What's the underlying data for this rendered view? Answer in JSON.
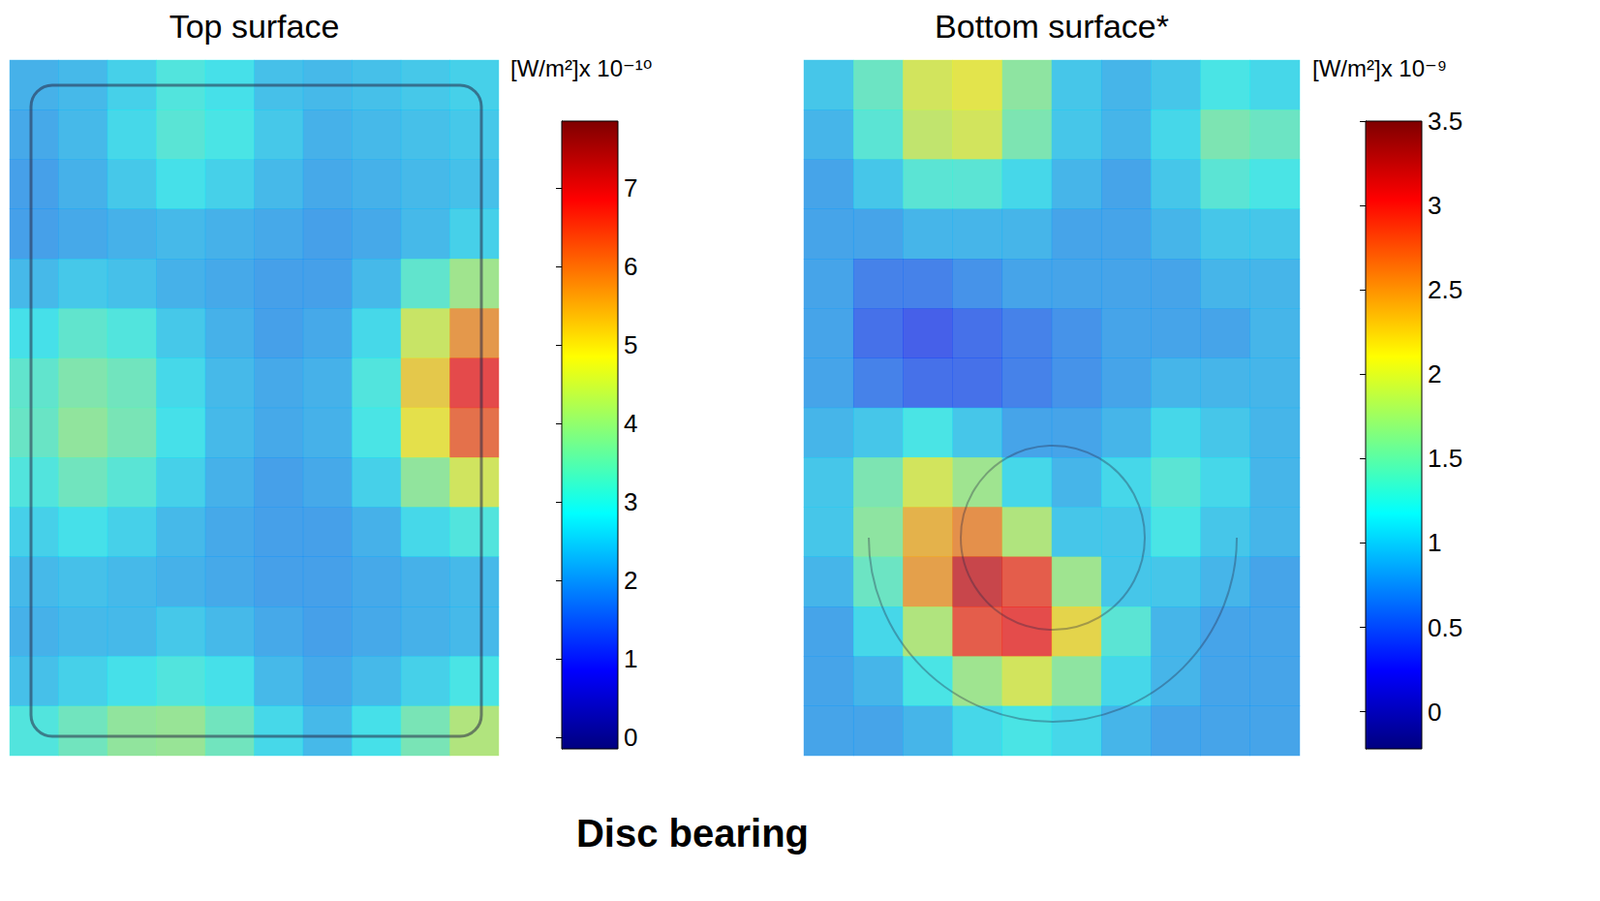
{
  "chart_data": [
    {
      "type": "heatmap",
      "title": "Top surface",
      "tick_labels": false,
      "colorbar_label": "[W/m²]x 10⁻¹⁰",
      "colorbar_range": [
        -0.15,
        7.85
      ],
      "colorbar_ticks": [
        0,
        1,
        2,
        3,
        4,
        5,
        6,
        7
      ],
      "cells": [
        [
          2.2,
          2.3,
          2.6,
          3.0,
          2.8,
          2.4,
          2.3,
          2.4,
          2.5,
          2.6
        ],
        [
          2.1,
          2.3,
          2.7,
          3.1,
          2.9,
          2.5,
          2.2,
          2.3,
          2.4,
          2.5
        ],
        [
          2.0,
          2.2,
          2.5,
          2.8,
          2.6,
          2.3,
          2.1,
          2.2,
          2.3,
          2.4
        ],
        [
          2.0,
          2.1,
          2.2,
          2.3,
          2.2,
          2.1,
          2.0,
          2.1,
          2.3,
          2.6
        ],
        [
          2.3,
          2.5,
          2.4,
          2.2,
          2.1,
          2.0,
          2.0,
          2.3,
          3.2,
          4.0
        ],
        [
          2.8,
          3.2,
          3.0,
          2.5,
          2.2,
          2.0,
          2.1,
          2.7,
          4.5,
          5.8
        ],
        [
          3.2,
          3.6,
          3.4,
          2.7,
          2.3,
          2.1,
          2.2,
          3.0,
          5.2,
          6.8
        ],
        [
          3.3,
          3.8,
          3.5,
          2.8,
          2.3,
          2.1,
          2.2,
          2.9,
          4.9,
          6.3
        ],
        [
          3.0,
          3.4,
          3.1,
          2.6,
          2.2,
          2.0,
          2.1,
          2.6,
          3.8,
          4.6
        ],
        [
          2.6,
          2.8,
          2.6,
          2.3,
          2.1,
          2.0,
          2.0,
          2.2,
          2.7,
          3.0
        ],
        [
          2.3,
          2.4,
          2.3,
          2.2,
          2.1,
          2.0,
          2.0,
          2.1,
          2.2,
          2.3
        ],
        [
          2.2,
          2.3,
          2.3,
          2.5,
          2.3,
          2.1,
          2.0,
          2.1,
          2.2,
          2.3
        ],
        [
          2.4,
          2.6,
          2.8,
          3.0,
          2.8,
          2.3,
          2.1,
          2.3,
          2.6,
          2.9
        ],
        [
          3.0,
          3.4,
          3.8,
          3.9,
          3.4,
          2.7,
          2.3,
          2.8,
          3.5,
          4.2
        ]
      ]
    },
    {
      "type": "heatmap",
      "title": "Bottom surface*",
      "tick_labels": false,
      "colorbar_label": "[W/m²]x 10⁻⁹",
      "colorbar_range": [
        -0.22,
        3.5
      ],
      "colorbar_ticks": [
        0,
        0.5,
        1,
        1.5,
        2,
        2.5,
        3,
        3.5
      ],
      "cells": [
        [
          1.0,
          1.4,
          2.0,
          2.1,
          1.6,
          1.0,
          0.9,
          1.0,
          1.2,
          1.1
        ],
        [
          0.9,
          1.3,
          1.9,
          2.0,
          1.5,
          1.0,
          0.9,
          1.1,
          1.5,
          1.4
        ],
        [
          0.8,
          1.0,
          1.3,
          1.3,
          1.1,
          0.9,
          0.8,
          1.0,
          1.3,
          1.2
        ],
        [
          0.8,
          0.8,
          0.9,
          0.9,
          0.9,
          0.8,
          0.8,
          0.9,
          1.0,
          1.0
        ],
        [
          0.8,
          0.6,
          0.6,
          0.7,
          0.8,
          0.8,
          0.8,
          0.8,
          0.9,
          0.9
        ],
        [
          0.8,
          0.5,
          0.4,
          0.5,
          0.6,
          0.7,
          0.8,
          0.8,
          0.8,
          0.9
        ],
        [
          0.8,
          0.6,
          0.5,
          0.5,
          0.6,
          0.7,
          0.8,
          0.9,
          0.9,
          0.9
        ],
        [
          0.9,
          1.0,
          1.2,
          1.0,
          0.8,
          0.8,
          0.9,
          1.1,
          1.0,
          0.9
        ],
        [
          1.0,
          1.5,
          2.0,
          1.7,
          1.1,
          0.9,
          1.1,
          1.3,
          1.1,
          0.9
        ],
        [
          1.0,
          1.6,
          2.4,
          2.6,
          1.8,
          1.0,
          1.0,
          1.2,
          1.0,
          0.9
        ],
        [
          0.9,
          1.4,
          2.5,
          3.2,
          2.9,
          1.7,
          1.0,
          1.0,
          0.9,
          0.8
        ],
        [
          0.8,
          1.1,
          1.8,
          2.9,
          3.0,
          2.2,
          1.3,
          0.9,
          0.8,
          0.8
        ],
        [
          0.8,
          0.9,
          1.2,
          1.7,
          2.0,
          1.6,
          1.1,
          0.9,
          0.8,
          0.8
        ],
        [
          0.8,
          0.8,
          0.9,
          1.1,
          1.2,
          1.1,
          0.9,
          0.8,
          0.8,
          0.8
        ]
      ]
    }
  ],
  "caption": "Disc bearing"
}
